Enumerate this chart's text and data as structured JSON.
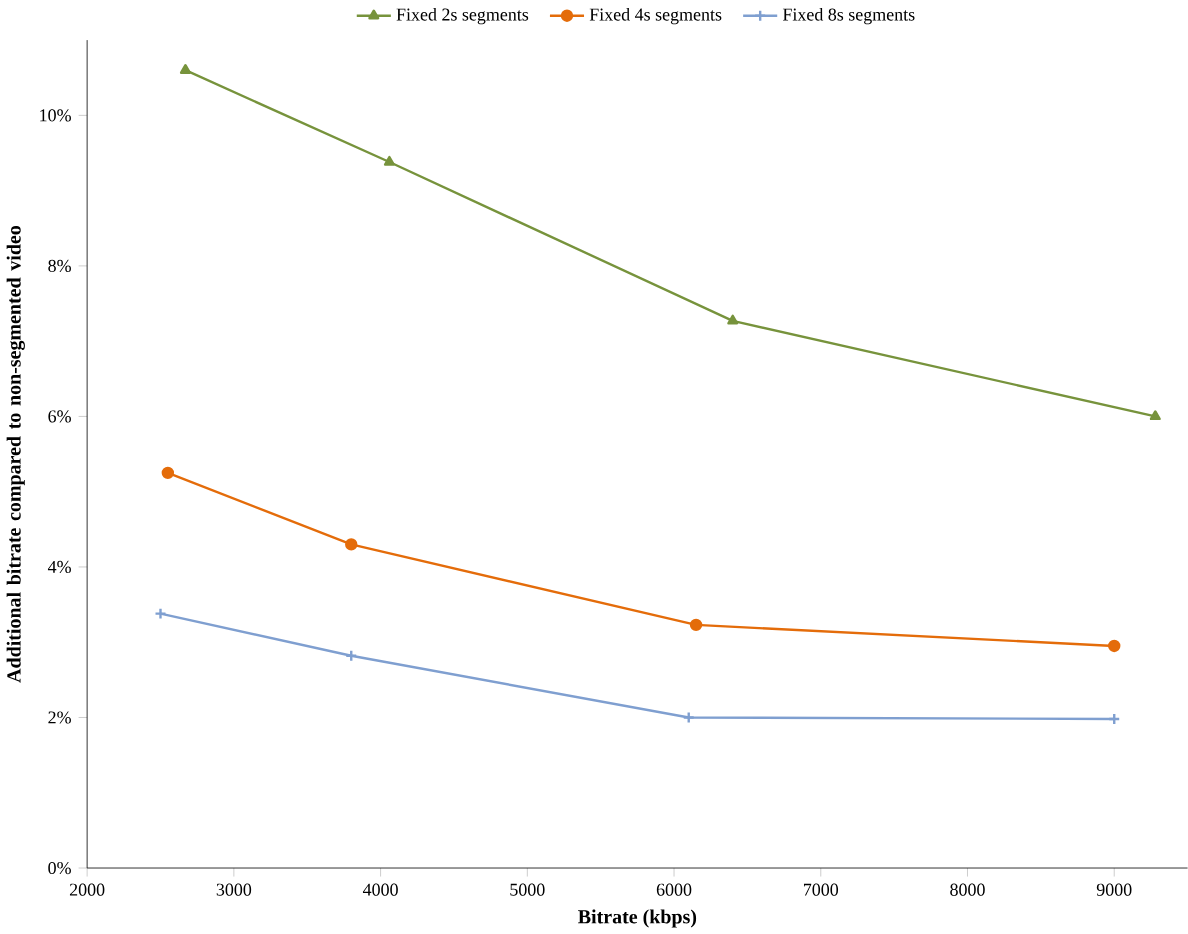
{
  "chart_data": {
    "type": "line",
    "xlabel": "Bitrate (kbps)",
    "ylabel": "Additional bitrate compared to non-segmented video",
    "xlim": [
      2000,
      9500
    ],
    "xticks": [
      2000,
      3000,
      4000,
      5000,
      6000,
      7000,
      8000,
      9000
    ],
    "ylim": [
      0,
      11
    ],
    "yticks": [
      {
        "value": 0,
        "label": "0%"
      },
      {
        "value": 2,
        "label": "2%"
      },
      {
        "value": 4,
        "label": "4%"
      },
      {
        "value": 6,
        "label": "6%"
      },
      {
        "value": 8,
        "label": "8%"
      },
      {
        "value": 10,
        "label": "10%"
      }
    ],
    "grid": false,
    "legend": "top",
    "series": [
      {
        "name": "Fixed 2s segments",
        "color": "#77933c",
        "marker": "triangle",
        "x": [
          2670,
          4060,
          6400,
          9280
        ],
        "values": [
          10.6,
          9.38,
          7.27,
          6.0
        ]
      },
      {
        "name": "Fixed 4s segments",
        "color": "#e46c0a",
        "marker": "circle",
        "x": [
          2550,
          3800,
          6150,
          9000
        ],
        "values": [
          5.25,
          4.3,
          3.23,
          2.95
        ]
      },
      {
        "name": "Fixed 8s segments",
        "color": "#7f9fd0",
        "marker": "cross",
        "x": [
          2500,
          3800,
          6100,
          9000
        ],
        "values": [
          3.38,
          2.82,
          2.0,
          1.98
        ]
      }
    ]
  }
}
